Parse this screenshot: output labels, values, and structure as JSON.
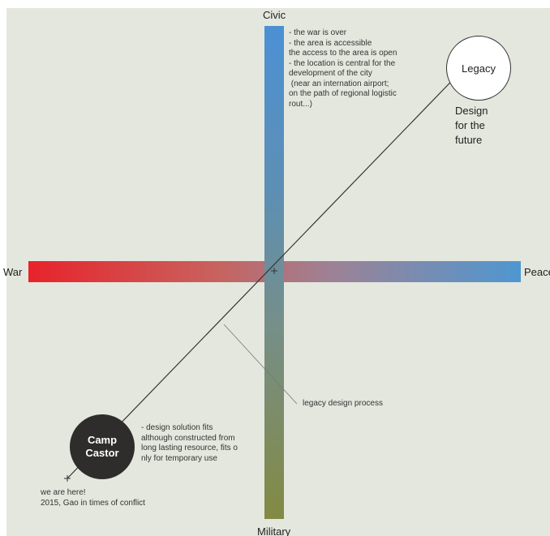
{
  "axes": {
    "top": "Civic",
    "bottom": "Military",
    "left": "War",
    "right": "Peace"
  },
  "legacy": {
    "circle_label": "Legacy",
    "subtitle": "Design\nfor the\nfuture"
  },
  "camp": {
    "circle_label": "Camp\nCastor",
    "here_note": "we are here!\n2015, Gao in times of conflict"
  },
  "notes": {
    "civic": "- the war is over\n- the area is accessible\nthe access to the area is open\n- the location is central for the\ndevelopment of the city\n (near an internation airport;\non the path of regional logistic\nrout...)",
    "camp_design": "- design solution fits\nalthough constructed from\nlong lasting resource, fits o\nnly for temporary use",
    "process": "legacy design process"
  },
  "colors": {
    "background": "#e4e7de",
    "war_red": "#e8232b",
    "peace_blue": "#4f97d1",
    "civic_blue": "#4c90d4",
    "military_olive": "#838a43",
    "camp_fill": "#2e2d2b",
    "legacy_fill": "#ffffff"
  }
}
